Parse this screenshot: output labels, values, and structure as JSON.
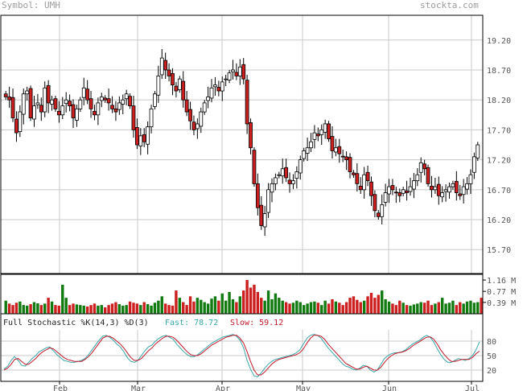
{
  "header": {
    "symbol_label": "Symbol: UMH",
    "brand": "stockta.com"
  },
  "stochastic": {
    "title": "Full Stochastic %K(14,3) %D(3)",
    "fast_label": "Fast: 78.72",
    "slow_label": "Slow: 59.12",
    "fast_color": "#3aa7a7",
    "slow_color": "#c0182a"
  },
  "colors": {
    "up_candle": "#ffffff",
    "down_candle": "#cc1f1f",
    "volume_bar": "#117a11",
    "grid": "#c8c8c8",
    "axis_text": "#555555"
  },
  "chart_data": [
    {
      "type": "candlestick",
      "title": "",
      "y_ticks": [
        "19.20",
        "18.70",
        "18.20",
        "17.70",
        "17.20",
        "16.70",
        "16.20",
        "15.70"
      ],
      "ylim": [
        15.3,
        19.6
      ],
      "x_ticks": [
        "Feb",
        "Mar",
        "Apr",
        "May",
        "Jun",
        "Jul"
      ],
      "grid": true,
      "close": [
        18.25,
        18.2,
        17.9,
        17.65,
        18.0,
        18.3,
        18.35,
        17.9,
        18.1,
        18.15,
        18.0,
        18.4,
        18.15,
        18.2,
        18.05,
        17.95,
        18.1,
        18.2,
        18.1,
        17.9,
        18.05,
        18.2,
        18.4,
        18.2,
        18.05,
        17.95,
        18.15,
        18.25,
        18.2,
        18.15,
        18.05,
        18.0,
        18.15,
        18.2,
        18.3,
        18.1,
        17.7,
        17.45,
        17.6,
        17.5,
        17.75,
        18.05,
        18.3,
        18.6,
        18.9,
        18.7,
        18.6,
        18.45,
        18.35,
        18.55,
        18.2,
        18.0,
        17.85,
        17.7,
        17.8,
        18.0,
        18.15,
        18.25,
        18.4,
        18.45,
        18.35,
        18.5,
        18.55,
        18.65,
        18.7,
        18.6,
        18.75,
        18.55,
        17.8,
        17.4,
        16.8,
        16.4,
        16.1,
        16.3,
        16.7,
        16.8,
        16.9,
        16.95,
        17.05,
        16.9,
        16.8,
        16.85,
        17.0,
        17.2,
        17.35,
        17.4,
        17.5,
        17.65,
        17.6,
        17.7,
        17.8,
        17.55,
        17.35,
        17.4,
        17.3,
        17.25,
        17.2,
        17.0,
        16.95,
        16.8,
        16.7,
        16.95,
        16.85,
        16.6,
        16.35,
        16.25,
        16.45,
        16.65,
        16.75,
        16.7,
        16.65,
        16.6,
        16.7,
        16.65,
        16.75,
        16.85,
        16.95,
        17.15,
        17.05,
        16.8,
        16.7,
        16.75,
        16.6,
        16.65,
        16.7,
        16.75,
        16.8,
        16.65,
        16.6,
        16.75,
        16.8,
        16.95,
        17.25,
        17.45
      ],
      "_comment": ""
    },
    {
      "type": "bar",
      "title": "",
      "y_ticks": [
        "1.16 M",
        "0.77 M",
        "0.39 M"
      ],
      "ylim": [
        0,
        1.3
      ],
      "volume_millions": [
        0.45,
        0.35,
        0.3,
        0.38,
        0.42,
        0.3,
        0.28,
        0.33,
        0.4,
        0.36,
        0.3,
        0.35,
        0.55,
        0.42,
        0.3,
        0.28,
        1.0,
        0.55,
        0.3,
        0.35,
        0.32,
        0.3,
        0.28,
        0.25,
        0.3,
        0.35,
        0.28,
        0.3,
        0.22,
        0.3,
        0.35,
        0.4,
        0.33,
        0.28,
        0.3,
        0.42,
        0.38,
        0.35,
        0.3,
        0.4,
        0.33,
        0.28,
        0.38,
        0.45,
        0.6,
        0.35,
        0.3,
        0.28,
        0.8,
        0.55,
        0.4,
        0.3,
        0.6,
        0.42,
        0.55,
        0.48,
        0.4,
        0.35,
        0.52,
        0.6,
        0.45,
        0.7,
        0.45,
        0.75,
        0.5,
        0.4,
        0.6,
        0.8,
        1.16,
        0.9,
        1.0,
        0.75,
        0.55,
        0.45,
        0.8,
        0.5,
        0.7,
        0.55,
        0.45,
        0.4,
        0.35,
        0.38,
        0.45,
        0.4,
        0.3,
        0.35,
        0.4,
        0.42,
        0.38,
        0.3,
        0.45,
        0.35,
        0.5,
        0.42,
        0.38,
        0.3,
        0.4,
        0.55,
        0.6,
        0.48,
        0.4,
        0.45,
        0.6,
        0.72,
        0.55,
        0.65,
        0.8,
        0.5,
        0.42,
        0.35,
        0.3,
        0.45,
        0.38,
        0.3,
        0.28,
        0.32,
        0.35,
        0.4,
        0.38,
        0.45,
        0.3,
        0.35,
        0.4,
        0.55,
        0.35,
        0.38,
        0.45,
        0.3,
        0.4,
        0.35,
        0.42,
        0.45,
        0.38,
        0.4,
        0.55
      ]
    },
    {
      "type": "line",
      "title": "Full Stochastic %K(14,3) %D(3)",
      "y_ticks": [
        "80",
        "50",
        "20"
      ],
      "ylim": [
        0,
        100
      ],
      "series": [
        {
          "name": "Fast",
          "color": "#3aa7a7",
          "values": [
            22,
            28,
            40,
            48,
            40,
            30,
            28,
            36,
            44,
            50,
            58,
            62,
            66,
            68,
            60,
            52,
            46,
            40,
            38,
            36,
            36,
            38,
            40,
            44,
            52,
            62,
            72,
            82,
            90,
            92,
            88,
            82,
            74,
            68,
            58,
            46,
            38,
            36,
            40,
            50,
            60,
            68,
            72,
            80,
            86,
            90,
            92,
            88,
            84,
            74,
            66,
            58,
            52,
            48,
            48,
            52,
            58,
            64,
            70,
            76,
            80,
            84,
            88,
            90,
            92,
            94,
            90,
            82,
            66,
            40,
            22,
            8,
            6,
            14,
            24,
            32,
            38,
            42,
            44,
            46,
            48,
            50,
            52,
            56,
            62,
            74,
            86,
            92,
            94,
            92,
            86,
            76,
            66,
            58,
            50,
            42,
            34,
            28,
            26,
            22,
            20,
            24,
            30,
            28,
            20,
            16,
            20,
            32,
            44,
            50,
            54,
            56,
            56,
            58,
            62,
            68,
            74,
            78,
            82,
            88,
            92,
            88,
            78,
            64,
            52,
            42,
            36,
            36,
            40,
            44,
            42,
            40,
            44,
            50,
            62,
            78.72
          ]
        },
        {
          "name": "Slow",
          "color": "#c0182a",
          "values": [
            20,
            24,
            32,
            42,
            44,
            38,
            32,
            32,
            38,
            44,
            52,
            58,
            62,
            66,
            64,
            58,
            52,
            46,
            42,
            40,
            38,
            38,
            38,
            42,
            48,
            56,
            66,
            76,
            86,
            90,
            90,
            86,
            80,
            74,
            66,
            56,
            46,
            40,
            40,
            44,
            52,
            60,
            66,
            74,
            80,
            86,
            90,
            90,
            88,
            82,
            74,
            66,
            58,
            52,
            50,
            50,
            54,
            60,
            66,
            72,
            76,
            80,
            84,
            88,
            90,
            92,
            92,
            86,
            76,
            58,
            38,
            20,
            10,
            10,
            16,
            24,
            32,
            38,
            42,
            44,
            46,
            48,
            50,
            52,
            56,
            64,
            76,
            86,
            92,
            92,
            90,
            84,
            74,
            66,
            58,
            50,
            42,
            34,
            30,
            26,
            22,
            22,
            26,
            28,
            24,
            20,
            20,
            26,
            36,
            44,
            50,
            54,
            56,
            57,
            60,
            64,
            70,
            75,
            79,
            84,
            88,
            89,
            84,
            74,
            62,
            52,
            44,
            38,
            38,
            40,
            42,
            42,
            42,
            46,
            54,
            59.12
          ]
        }
      ]
    }
  ]
}
